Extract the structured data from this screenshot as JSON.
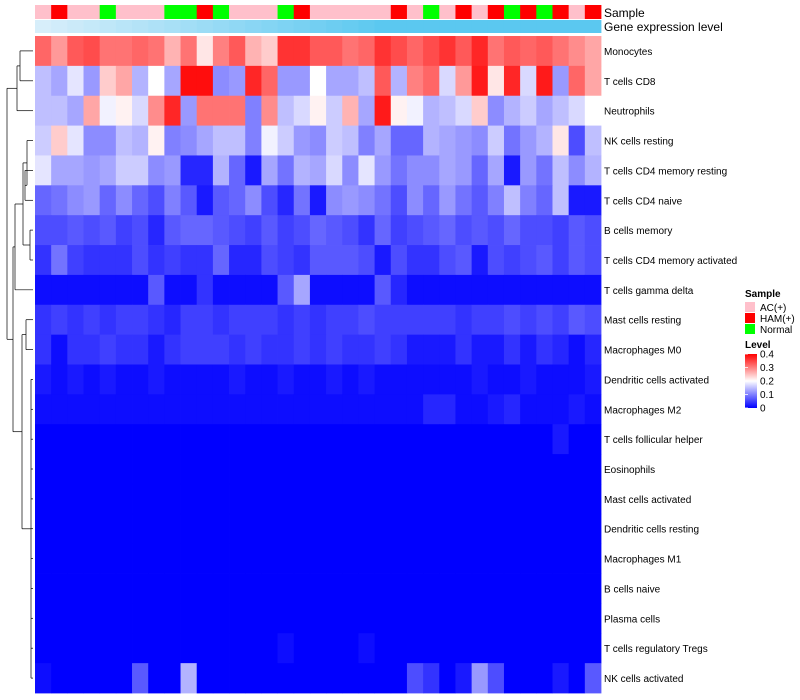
{
  "chart_data": {
    "type": "heatmap",
    "annotations": {
      "sample_label": "Sample",
      "gene_label": "Gene expression level",
      "sample_groups": [
        "AC(+)",
        "HAM(+)",
        "AC(+)",
        "AC(+)",
        "Normal",
        "AC(+)",
        "AC(+)",
        "AC(+)",
        "Normal",
        "Normal",
        "HAM(+)",
        "Normal",
        "AC(+)",
        "AC(+)",
        "AC(+)",
        "Normal",
        "HAM(+)",
        "AC(+)",
        "AC(+)",
        "AC(+)",
        "AC(+)",
        "AC(+)",
        "HAM(+)",
        "AC(+)",
        "Normal",
        "AC(+)",
        "HAM(+)",
        "AC(+)",
        "HAM(+)",
        "Normal",
        "HAM(+)",
        "Normal",
        "HAM(+)",
        "AC(+)",
        "HAM(+)"
      ]
    },
    "rows": [
      {
        "name": "Monocytes",
        "values": [
          0.32,
          0.28,
          0.33,
          0.34,
          0.31,
          0.31,
          0.32,
          0.31,
          0.26,
          0.31,
          0.22,
          0.3,
          0.33,
          0.26,
          0.24,
          0.36,
          0.36,
          0.33,
          0.33,
          0.31,
          0.32,
          0.36,
          0.34,
          0.32,
          0.34,
          0.36,
          0.33,
          0.37,
          0.31,
          0.33,
          0.32,
          0.33,
          0.31,
          0.29,
          0.27
        ]
      },
      {
        "name": "T cells CD8",
        "values": [
          0.15,
          0.13,
          0.18,
          0.12,
          0.24,
          0.27,
          0.14,
          0.2,
          0.13,
          0.39,
          0.39,
          0.11,
          0.12,
          0.37,
          0.32,
          0.12,
          0.12,
          0.2,
          0.13,
          0.13,
          0.15,
          0.33,
          0.14,
          0.3,
          0.32,
          0.17,
          0.28,
          0.38,
          0.22,
          0.37,
          0.17,
          0.38,
          0.12,
          0.32,
          0.27
        ]
      },
      {
        "name": "Neutrophils",
        "values": [
          0.15,
          0.15,
          0.13,
          0.27,
          0.19,
          0.21,
          0.17,
          0.29,
          0.37,
          0.12,
          0.31,
          0.31,
          0.31,
          0.1,
          0.29,
          0.15,
          0.17,
          0.21,
          0.16,
          0.26,
          0.13,
          0.38,
          0.21,
          0.19,
          0.14,
          0.15,
          0.17,
          0.24,
          0.11,
          0.14,
          0.16,
          0.13,
          0.15,
          0.17,
          0.2
        ]
      },
      {
        "name": "NK cells resting",
        "values": [
          0.16,
          0.24,
          0.18,
          0.11,
          0.11,
          0.15,
          0.14,
          0.21,
          0.1,
          0.11,
          0.13,
          0.15,
          0.15,
          0.1,
          0.19,
          0.16,
          0.12,
          0.11,
          0.16,
          0.15,
          0.1,
          0.13,
          0.08,
          0.08,
          0.14,
          0.13,
          0.12,
          0.11,
          0.16,
          0.09,
          0.12,
          0.14,
          0.22,
          0.06,
          0.15
        ]
      },
      {
        "name": "T cells CD4 memory resting",
        "values": [
          0.18,
          0.13,
          0.13,
          0.12,
          0.13,
          0.16,
          0.16,
          0.11,
          0.12,
          0.03,
          0.03,
          0.14,
          0.08,
          0.02,
          0.13,
          0.09,
          0.14,
          0.13,
          0.17,
          0.11,
          0.18,
          0.12,
          0.09,
          0.11,
          0.11,
          0.13,
          0.12,
          0.08,
          0.13,
          0.02,
          0.12,
          0.09,
          0.15,
          0.11,
          0.14
        ]
      },
      {
        "name": "T cells CD4 naive",
        "values": [
          0.08,
          0.09,
          0.11,
          0.12,
          0.08,
          0.11,
          0.08,
          0.06,
          0.1,
          0.07,
          0.02,
          0.07,
          0.08,
          0.11,
          0.06,
          0.03,
          0.09,
          0.02,
          0.11,
          0.12,
          0.11,
          0.09,
          0.06,
          0.11,
          0.08,
          0.12,
          0.09,
          0.07,
          0.1,
          0.15,
          0.1,
          0.08,
          0.15,
          0.02,
          0.02
        ]
      },
      {
        "name": "B cells memory",
        "values": [
          0.06,
          0.06,
          0.07,
          0.06,
          0.07,
          0.05,
          0.06,
          0.03,
          0.07,
          0.08,
          0.08,
          0.07,
          0.06,
          0.05,
          0.07,
          0.05,
          0.06,
          0.08,
          0.07,
          0.06,
          0.04,
          0.08,
          0.05,
          0.06,
          0.07,
          0.08,
          0.06,
          0.07,
          0.06,
          0.08,
          0.06,
          0.06,
          0.05,
          0.07,
          0.06
        ]
      },
      {
        "name": "T cells CD4 memory activated",
        "values": [
          0.04,
          0.09,
          0.05,
          0.04,
          0.04,
          0.04,
          0.06,
          0.04,
          0.05,
          0.04,
          0.04,
          0.08,
          0.03,
          0.03,
          0.06,
          0.05,
          0.04,
          0.07,
          0.07,
          0.07,
          0.06,
          0.02,
          0.06,
          0.04,
          0.04,
          0.06,
          0.07,
          0.02,
          0.06,
          0.05,
          0.06,
          0.07,
          0.05,
          0.07,
          0.06
        ]
      },
      {
        "name": "T cells gamma delta",
        "values": [
          0.01,
          0.01,
          0.01,
          0.01,
          0.01,
          0.01,
          0.01,
          0.07,
          0.01,
          0.01,
          0.04,
          0.01,
          0.01,
          0.01,
          0.01,
          0.07,
          0.13,
          0.01,
          0.01,
          0.01,
          0.01,
          0.07,
          0.03,
          0.01,
          0.01,
          0.01,
          0.01,
          0.01,
          0.01,
          0.01,
          0.01,
          0.01,
          0.01,
          0.01,
          0.01
        ]
      },
      {
        "name": "Mast cells resting",
        "values": [
          0.04,
          0.05,
          0.04,
          0.05,
          0.04,
          0.05,
          0.05,
          0.04,
          0.03,
          0.05,
          0.05,
          0.04,
          0.05,
          0.05,
          0.05,
          0.04,
          0.05,
          0.04,
          0.05,
          0.05,
          0.06,
          0.05,
          0.05,
          0.05,
          0.05,
          0.05,
          0.04,
          0.05,
          0.05,
          0.06,
          0.05,
          0.06,
          0.05,
          0.07,
          0.06
        ]
      },
      {
        "name": "Macrophages M0",
        "values": [
          0.04,
          0.01,
          0.04,
          0.04,
          0.05,
          0.04,
          0.04,
          0.02,
          0.04,
          0.05,
          0.05,
          0.05,
          0.04,
          0.05,
          0.04,
          0.04,
          0.05,
          0.04,
          0.05,
          0.04,
          0.04,
          0.05,
          0.04,
          0.02,
          0.02,
          0.02,
          0.04,
          0.02,
          0.02,
          0.04,
          0.02,
          0.04,
          0.03,
          0.01,
          0.03
        ]
      },
      {
        "name": "Dendritic cells activated",
        "values": [
          0.02,
          0.01,
          0.02,
          0.01,
          0.02,
          0.01,
          0.01,
          0.02,
          0.01,
          0.01,
          0.01,
          0.01,
          0.02,
          0.01,
          0.01,
          0.02,
          0.01,
          0.01,
          0.02,
          0.01,
          0.02,
          0.01,
          0.01,
          0.01,
          0.01,
          0.01,
          0.01,
          0.02,
          0.01,
          0.01,
          0.02,
          0.01,
          0.01,
          0.01,
          0.02
        ]
      },
      {
        "name": "Macrophages M2",
        "values": [
          0.01,
          0.01,
          0.01,
          0.01,
          0.01,
          0.01,
          0.01,
          0.01,
          0.01,
          0.01,
          0.01,
          0.01,
          0.01,
          0.01,
          0.01,
          0.01,
          0.01,
          0.01,
          0.01,
          0.01,
          0.01,
          0.01,
          0.01,
          0.01,
          0.03,
          0.03,
          0.01,
          0.01,
          0.02,
          0.03,
          0.01,
          0.01,
          0.01,
          0.02,
          0.01
        ]
      },
      {
        "name": "T cells follicular helper",
        "values": [
          0,
          0,
          0,
          0,
          0,
          0,
          0,
          0,
          0,
          0,
          0,
          0,
          0,
          0,
          0,
          0,
          0,
          0,
          0,
          0,
          0,
          0,
          0,
          0,
          0,
          0,
          0,
          0,
          0,
          0,
          0,
          0,
          0.02,
          0,
          0
        ]
      },
      {
        "name": "Eosinophils",
        "values": [
          0,
          0,
          0,
          0,
          0,
          0,
          0,
          0,
          0,
          0,
          0,
          0,
          0,
          0,
          0,
          0,
          0,
          0,
          0,
          0,
          0,
          0,
          0,
          0,
          0,
          0,
          0,
          0,
          0,
          0,
          0,
          0,
          0,
          0,
          0
        ]
      },
      {
        "name": "Mast cells activated",
        "values": [
          0,
          0,
          0,
          0,
          0,
          0,
          0,
          0,
          0,
          0,
          0,
          0,
          0,
          0,
          0,
          0,
          0,
          0,
          0,
          0,
          0,
          0,
          0,
          0,
          0,
          0,
          0,
          0,
          0,
          0,
          0,
          0,
          0,
          0,
          0
        ]
      },
      {
        "name": "Dendritic cells resting",
        "values": [
          0,
          0,
          0,
          0,
          0,
          0,
          0,
          0,
          0,
          0,
          0,
          0,
          0,
          0,
          0,
          0,
          0,
          0,
          0,
          0,
          0,
          0,
          0,
          0,
          0,
          0,
          0,
          0,
          0,
          0,
          0,
          0,
          0,
          0,
          0
        ]
      },
      {
        "name": "Macrophages M1",
        "values": [
          0,
          0,
          0,
          0,
          0,
          0,
          0,
          0,
          0,
          0,
          0,
          0,
          0,
          0,
          0,
          0,
          0,
          0,
          0,
          0,
          0,
          0,
          0,
          0,
          0,
          0,
          0,
          0,
          0,
          0,
          0,
          0,
          0,
          0,
          0
        ]
      },
      {
        "name": "B cells naive",
        "values": [
          0,
          0,
          0,
          0,
          0,
          0,
          0,
          0,
          0,
          0,
          0,
          0,
          0,
          0,
          0,
          0,
          0,
          0,
          0,
          0,
          0,
          0,
          0,
          0,
          0,
          0,
          0,
          0,
          0,
          0,
          0,
          0,
          0,
          0,
          0
        ]
      },
      {
        "name": "Plasma cells",
        "values": [
          0,
          0,
          0,
          0,
          0,
          0,
          0,
          0,
          0,
          0,
          0,
          0,
          0,
          0,
          0,
          0,
          0,
          0,
          0,
          0,
          0,
          0,
          0,
          0,
          0,
          0,
          0,
          0,
          0,
          0,
          0,
          0,
          0,
          0,
          0
        ]
      },
      {
        "name": "T cells regulatory  Tregs",
        "values": [
          0,
          0,
          0,
          0,
          0,
          0,
          0,
          0,
          0,
          0,
          0,
          0,
          0,
          0,
          0,
          0.01,
          0,
          0,
          0,
          0,
          0.01,
          0,
          0,
          0,
          0,
          0,
          0,
          0,
          0,
          0,
          0,
          0,
          0,
          0,
          0
        ]
      },
      {
        "name": "NK cells activated",
        "values": [
          0.01,
          0,
          0,
          0,
          0,
          0,
          0.07,
          0,
          0,
          0.14,
          0,
          0,
          0,
          0,
          0,
          0,
          0,
          0,
          0,
          0,
          0,
          0,
          0,
          0.06,
          0.04,
          0,
          0.02,
          0.12,
          0.06,
          0,
          0,
          0,
          0.02,
          0,
          0.07
        ]
      }
    ],
    "color_scale": {
      "min": 0,
      "mid": 0.2,
      "max": 0.4,
      "low": "#0000FF",
      "midcolor": "#FFFFFF",
      "high": "#FF0000"
    },
    "legend": {
      "sample_title": "Sample",
      "sample_entries": [
        {
          "label": "AC(+)",
          "color": "#FFC0CB"
        },
        {
          "label": "HAM(+)",
          "color": "#FF0000"
        },
        {
          "label": "Normal",
          "color": "#00FF00"
        }
      ],
      "level_title": "Level",
      "level_ticks": [
        "0.4",
        "0.3",
        "0.2",
        "0.1",
        "0"
      ],
      "level_tick_values": [
        0.4,
        0.3,
        0.2,
        0.1,
        0
      ]
    },
    "gene_expression_color": "#5BC8F0"
  }
}
